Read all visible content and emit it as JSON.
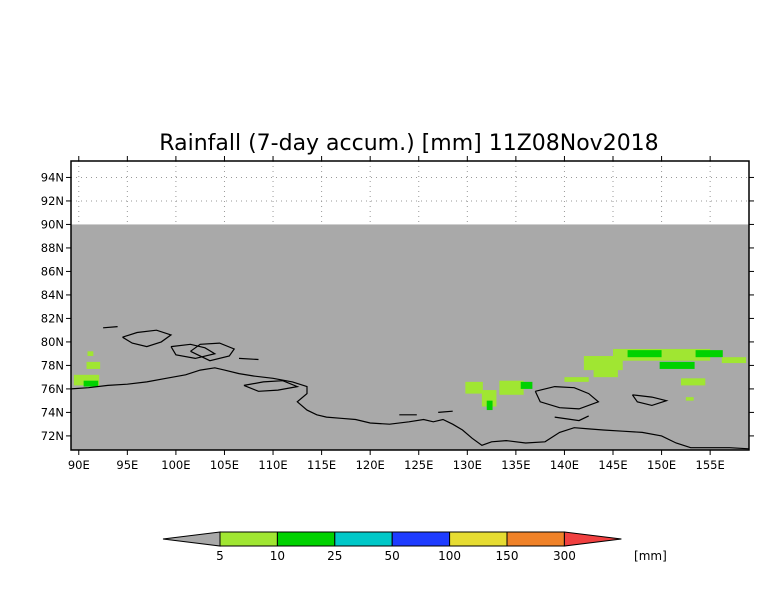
{
  "title": "Rainfall (7-day accum.) [mm] 11Z08Nov2018",
  "map": {
    "lat_labels": [
      "94N",
      "92N",
      "90N",
      "88N",
      "86N",
      "84N",
      "82N",
      "80N",
      "78N",
      "76N",
      "74N",
      "72N"
    ],
    "lat_values": [
      94,
      92,
      90,
      88,
      86,
      84,
      82,
      80,
      78,
      76,
      74,
      72
    ],
    "lon_labels": [
      "90E",
      "95E",
      "100E",
      "105E",
      "110E",
      "115E",
      "120E",
      "125E",
      "130E",
      "135E",
      "140E",
      "145E",
      "150E",
      "155E"
    ],
    "lon_values": [
      90,
      95,
      100,
      105,
      110,
      115,
      120,
      125,
      130,
      135,
      140,
      145,
      150,
      155
    ],
    "lat_range": [
      70.8,
      95.4
    ],
    "lon_range": [
      89.2,
      159
    ],
    "no_data_above_lat": 90,
    "colors": {
      "ocean_land_masked": "#a9a9a9",
      "coastline": "#000000",
      "grid": "#888888"
    },
    "rain_patches": [
      {
        "lat": 76.3,
        "lon": 89.5,
        "lat_h": 0.9,
        "lon_w": 2.6,
        "level": "5"
      },
      {
        "lat": 76.2,
        "lon": 90.5,
        "lat_h": 0.5,
        "lon_w": 1.5,
        "level": "10"
      },
      {
        "lat": 77.7,
        "lon": 90.8,
        "lat_h": 0.6,
        "lon_w": 1.4,
        "level": "5"
      },
      {
        "lat": 78.8,
        "lon": 90.9,
        "lat_h": 0.4,
        "lon_w": 0.6,
        "level": "5"
      },
      {
        "lat": 75.6,
        "lon": 129.8,
        "lat_h": 1.0,
        "lon_w": 1.8,
        "level": "5"
      },
      {
        "lat": 74.5,
        "lon": 131.5,
        "lat_h": 1.4,
        "lon_w": 1.5,
        "level": "5"
      },
      {
        "lat": 74.2,
        "lon": 132.0,
        "lat_h": 0.8,
        "lon_w": 0.6,
        "level": "10"
      },
      {
        "lat": 75.5,
        "lon": 133.3,
        "lat_h": 1.2,
        "lon_w": 2.5,
        "level": "5"
      },
      {
        "lat": 76.0,
        "lon": 135.5,
        "lat_h": 0.6,
        "lon_w": 1.2,
        "level": "10"
      },
      {
        "lat": 76.6,
        "lon": 140.0,
        "lat_h": 0.4,
        "lon_w": 2.5,
        "level": "5"
      },
      {
        "lat": 77.6,
        "lon": 142.0,
        "lat_h": 1.2,
        "lon_w": 4.0,
        "level": "5"
      },
      {
        "lat": 78.4,
        "lon": 145.0,
        "lat_h": 1.0,
        "lon_w": 10.0,
        "level": "5"
      },
      {
        "lat": 78.7,
        "lon": 146.5,
        "lat_h": 0.6,
        "lon_w": 3.5,
        "level": "10"
      },
      {
        "lat": 77.7,
        "lon": 149.8,
        "lat_h": 0.6,
        "lon_w": 3.6,
        "level": "10"
      },
      {
        "lat": 78.7,
        "lon": 153.5,
        "lat_h": 0.6,
        "lon_w": 2.8,
        "level": "10"
      },
      {
        "lat": 78.2,
        "lon": 156.2,
        "lat_h": 0.5,
        "lon_w": 2.5,
        "level": "5"
      },
      {
        "lat": 77.0,
        "lon": 143.0,
        "lat_h": 0.7,
        "lon_w": 2.5,
        "level": "5"
      },
      {
        "lat": 76.3,
        "lon": 152.0,
        "lat_h": 0.6,
        "lon_w": 2.5,
        "level": "5"
      },
      {
        "lat": 75.0,
        "lon": 152.5,
        "lat_h": 0.3,
        "lon_w": 0.8,
        "level": "5"
      }
    ]
  },
  "colorbar": {
    "below_color": "#a9a9a9",
    "above_color": "#f04040",
    "colors": [
      "#a0e632",
      "#00d200",
      "#00c8c8",
      "#1e3cff",
      "#e6dc32",
      "#f08228"
    ],
    "labels": [
      "5",
      "10",
      "25",
      "50",
      "100",
      "150",
      "300"
    ],
    "unit": "[mm]"
  }
}
